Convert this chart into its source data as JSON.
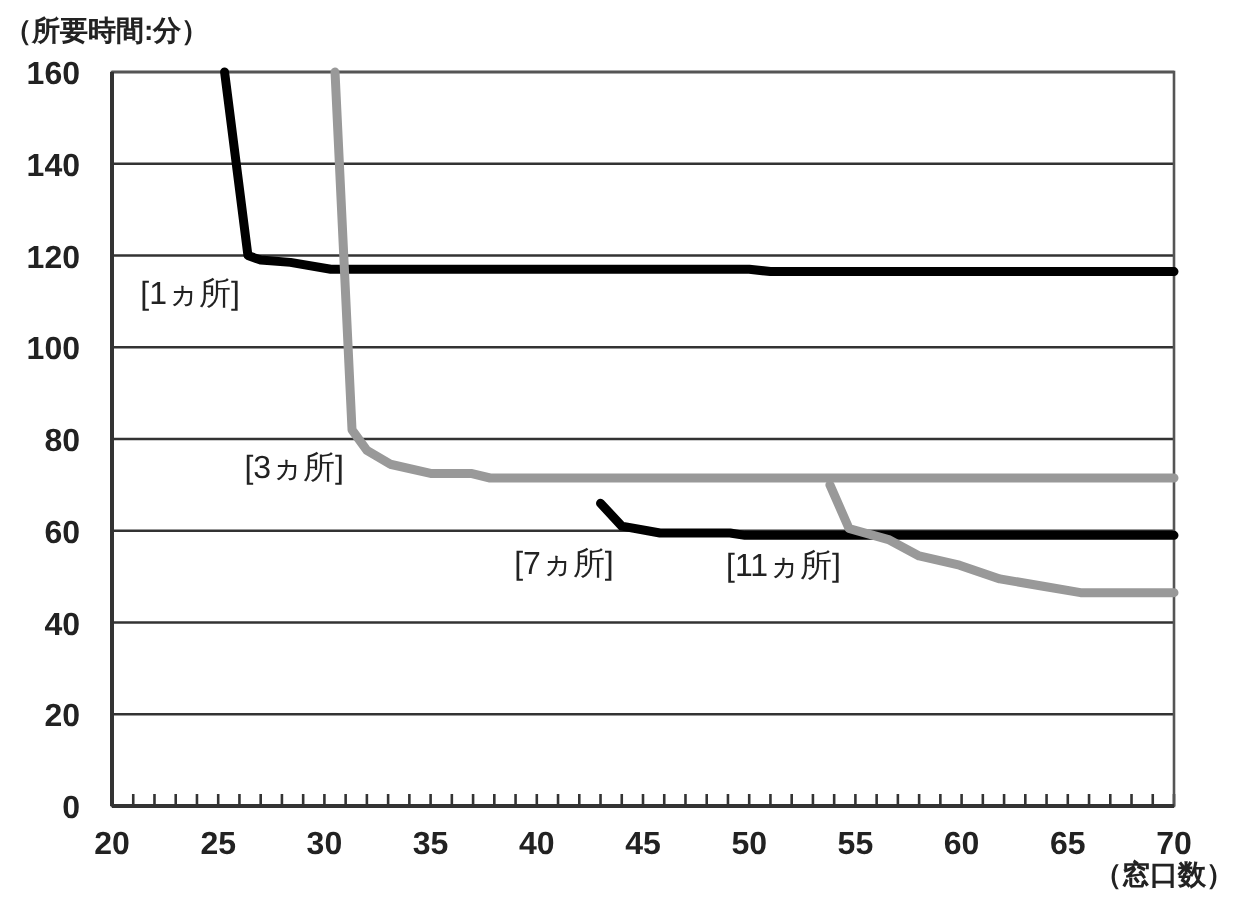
{
  "chart_data": {
    "type": "line",
    "ylabel": "（所要時間:分）",
    "xlabel": "（窓口数）",
    "xlim": [
      20,
      70
    ],
    "ylim": [
      0,
      160
    ],
    "xticks": [
      20,
      {
        "value": 21,
        "label": null
      },
      {
        "value": 22,
        "label": null
      },
      {
        "value": 23,
        "label": null
      },
      {
        "value": 24,
        "label": null
      },
      25,
      {
        "value": 26,
        "label": null
      },
      {
        "value": 27,
        "label": null
      },
      {
        "value": 28,
        "label": null
      },
      {
        "value": 29,
        "label": null
      },
      30,
      {
        "value": 31,
        "label": null
      },
      {
        "value": 32,
        "label": null
      },
      {
        "value": 33,
        "label": null
      },
      {
        "value": 34,
        "label": null
      },
      35,
      {
        "value": 36,
        "label": null
      },
      {
        "value": 37,
        "label": null
      },
      {
        "value": 38,
        "label": null
      },
      {
        "value": 39,
        "label": null
      },
      40,
      {
        "value": 41,
        "label": null
      },
      {
        "value": 42,
        "label": null
      },
      {
        "value": 43,
        "label": null
      },
      {
        "value": 44,
        "label": null
      },
      45,
      {
        "value": 46,
        "label": null
      },
      {
        "value": 47,
        "label": null
      },
      {
        "value": 48,
        "label": null
      },
      {
        "value": 49,
        "label": null
      },
      50,
      {
        "value": 51,
        "label": null
      },
      {
        "value": 52,
        "label": null
      },
      {
        "value": 53,
        "label": null
      },
      {
        "value": 54,
        "label": null
      },
      55,
      {
        "value": 56,
        "label": null
      },
      {
        "value": 57,
        "label": null
      },
      {
        "value": 58,
        "label": null
      },
      {
        "value": 59,
        "label": null
      },
      60,
      {
        "value": 61,
        "label": null
      },
      {
        "value": 62,
        "label": null
      },
      {
        "value": 63,
        "label": null
      },
      {
        "value": 64,
        "label": null
      },
      65,
      {
        "value": 66,
        "label": null
      },
      {
        "value": 67,
        "label": null
      },
      {
        "value": 68,
        "label": null
      },
      {
        "value": 69,
        "label": null
      },
      70
    ],
    "yticks": [
      0,
      20,
      40,
      60,
      80,
      100,
      120,
      140,
      160
    ],
    "grid": "y",
    "marker": "none",
    "line_style": "solid",
    "series": [
      {
        "name": "[1ヵ所]",
        "color": "#000000",
        "x": [
          25.3,
          26.4,
          27,
          28.4,
          30.3,
          50,
          51,
          70
        ],
        "values": [
          160,
          120,
          119,
          118.5,
          117,
          117,
          116.5,
          116.5
        ]
      },
      {
        "name": "[3ヵ所]",
        "color": "#999999",
        "x": [
          30.5,
          31.3,
          32,
          33.1,
          35,
          36.9,
          37.8,
          70
        ],
        "values": [
          160,
          82,
          77.5,
          74.5,
          72.5,
          72.5,
          71.5,
          71.5
        ]
      },
      {
        "name": "[7ヵ所]",
        "color": "#000000",
        "x": [
          43,
          44,
          45.8,
          49.1,
          49.8,
          70
        ],
        "values": [
          66,
          61,
          59.5,
          59.5,
          59,
          59
        ]
      },
      {
        "name": "[11ヵ所]",
        "color": "#999999",
        "x": [
          53.8,
          54.7,
          56.6,
          58,
          59.9,
          61.8,
          63.7,
          65.6,
          70
        ],
        "values": [
          70,
          60.5,
          58,
          54.5,
          52.5,
          49.5,
          48,
          46.5,
          46.5
        ]
      }
    ]
  }
}
